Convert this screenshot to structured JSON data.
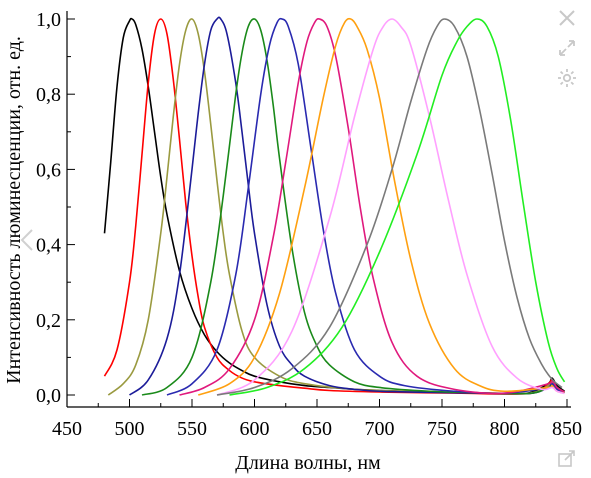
{
  "chart_data": {
    "type": "line",
    "title": "",
    "xlabel": "Длина волны, нм",
    "ylabel": "Интенсивность люминесценции, отн. ед.",
    "xlim": [
      450,
      850
    ],
    "ylim": [
      0,
      1.0
    ],
    "xticks": [
      "450",
      "500",
      "550",
      "600",
      "650",
      "700",
      "750",
      "800",
      "850"
    ],
    "yticks": [
      "0,0",
      "0,2",
      "0,4",
      "0,6",
      "0,8",
      "1,0"
    ],
    "grid": false,
    "legend": "none",
    "series": [
      {
        "color": "#000000",
        "x": [
          480,
          485,
          490,
          495,
          500,
          502,
          505,
          510,
          515,
          520,
          525,
          530,
          540,
          550,
          560,
          570,
          580,
          590,
          600,
          620,
          640,
          660,
          680,
          700,
          720,
          740,
          760,
          780,
          800,
          820,
          835,
          838,
          842,
          848
        ],
        "y": [
          0.43,
          0.62,
          0.82,
          0.95,
          0.995,
          1.0,
          0.985,
          0.92,
          0.82,
          0.7,
          0.58,
          0.48,
          0.33,
          0.23,
          0.16,
          0.115,
          0.085,
          0.065,
          0.05,
          0.035,
          0.025,
          0.02,
          0.015,
          0.012,
          0.01,
          0.008,
          0.006,
          0.005,
          0.004,
          0.006,
          0.03,
          0.045,
          0.025,
          0.01
        ]
      },
      {
        "color": "#ff0000",
        "x": [
          480,
          490,
          500,
          505,
          510,
          515,
          520,
          525,
          530,
          535,
          540,
          545,
          550,
          555,
          560,
          570,
          580,
          590,
          600,
          620,
          640,
          660,
          700,
          760,
          820,
          835,
          838,
          842,
          848
        ],
        "y": [
          0.05,
          0.12,
          0.3,
          0.45,
          0.64,
          0.83,
          0.96,
          1.0,
          0.96,
          0.84,
          0.68,
          0.51,
          0.37,
          0.26,
          0.18,
          0.1,
          0.065,
          0.045,
          0.035,
          0.025,
          0.018,
          0.012,
          0.008,
          0.005,
          0.004,
          0.03,
          0.04,
          0.02,
          0.008
        ]
      },
      {
        "color": "#9a9a40",
        "x": [
          483,
          495,
          505,
          515,
          525,
          530,
          535,
          540,
          545,
          550,
          555,
          560,
          565,
          570,
          575,
          580,
          590,
          600,
          620,
          640,
          680,
          720,
          780,
          820,
          835,
          838,
          842,
          848
        ],
        "y": [
          0.0,
          0.03,
          0.08,
          0.2,
          0.43,
          0.58,
          0.74,
          0.88,
          0.97,
          1.0,
          0.96,
          0.86,
          0.72,
          0.57,
          0.43,
          0.32,
          0.17,
          0.1,
          0.05,
          0.03,
          0.015,
          0.01,
          0.006,
          0.005,
          0.025,
          0.035,
          0.02,
          0.008
        ]
      },
      {
        "color": "#1c1c99",
        "x": [
          500,
          515,
          530,
          540,
          550,
          555,
          560,
          565,
          570,
          573,
          578,
          585,
          590,
          595,
          600,
          610,
          620,
          630,
          640,
          660,
          680,
          700,
          740,
          780,
          820,
          835,
          838,
          842,
          848
        ],
        "y": [
          0.0,
          0.04,
          0.15,
          0.32,
          0.6,
          0.75,
          0.88,
          0.97,
          1.0,
          1.0,
          0.96,
          0.83,
          0.7,
          0.56,
          0.43,
          0.24,
          0.13,
          0.08,
          0.05,
          0.025,
          0.015,
          0.01,
          0.007,
          0.005,
          0.004,
          0.02,
          0.03,
          0.015,
          0.006
        ]
      },
      {
        "color": "#1a8a1a",
        "x": [
          510,
          530,
          550,
          565,
          575,
          585,
          590,
          595,
          600,
          605,
          610,
          615,
          620,
          630,
          640,
          650,
          660,
          680,
          700,
          740,
          780,
          820,
          835,
          838,
          842,
          848
        ],
        "y": [
          0.0,
          0.02,
          0.1,
          0.3,
          0.53,
          0.8,
          0.91,
          0.98,
          1.0,
          0.97,
          0.89,
          0.77,
          0.63,
          0.39,
          0.22,
          0.13,
          0.08,
          0.035,
          0.02,
          0.01,
          0.006,
          0.004,
          0.02,
          0.025,
          0.012,
          0.005
        ]
      },
      {
        "color": "#2a2ab0",
        "x": [
          530,
          550,
          570,
          585,
          595,
          605,
          612,
          618,
          622,
          627,
          635,
          645,
          655,
          665,
          680,
          700,
          720,
          760,
          800,
          835,
          838,
          842,
          848
        ],
        "y": [
          0.0,
          0.03,
          0.12,
          0.32,
          0.55,
          0.8,
          0.93,
          0.99,
          1.0,
          0.98,
          0.88,
          0.66,
          0.44,
          0.27,
          0.12,
          0.05,
          0.025,
          0.01,
          0.005,
          0.02,
          0.03,
          0.015,
          0.005
        ]
      },
      {
        "color": "#e0197d",
        "x": [
          540,
          560,
          580,
          600,
          615,
          625,
          635,
          642,
          648,
          652,
          658,
          665,
          675,
          685,
          695,
          710,
          730,
          760,
          800,
          835,
          838,
          842,
          848
        ],
        "y": [
          0.0,
          0.02,
          0.07,
          0.2,
          0.42,
          0.62,
          0.83,
          0.94,
          0.99,
          1.0,
          0.98,
          0.9,
          0.71,
          0.49,
          0.31,
          0.14,
          0.05,
          0.015,
          0.005,
          0.03,
          0.04,
          0.02,
          0.008
        ]
      },
      {
        "color": "#ffa010",
        "x": [
          555,
          580,
          600,
          620,
          640,
          655,
          665,
          672,
          677,
          682,
          690,
          700,
          712,
          725,
          740,
          760,
          780,
          800,
          835,
          838,
          842,
          848
        ],
        "y": [
          0.0,
          0.03,
          0.1,
          0.27,
          0.55,
          0.79,
          0.93,
          0.99,
          1.0,
          0.98,
          0.92,
          0.79,
          0.57,
          0.36,
          0.19,
          0.07,
          0.025,
          0.01,
          0.02,
          0.025,
          0.01,
          0.005
        ]
      },
      {
        "color": "#ffa0ff",
        "x": [
          570,
          600,
          630,
          660,
          680,
          695,
          703,
          710,
          717,
          725,
          740,
          755,
          770,
          790,
          810,
          830,
          838,
          842,
          848
        ],
        "y": [
          0.0,
          0.04,
          0.17,
          0.47,
          0.74,
          0.92,
          0.98,
          1.0,
          0.98,
          0.93,
          0.74,
          0.52,
          0.32,
          0.13,
          0.045,
          0.015,
          0.02,
          0.01,
          0.004
        ]
      },
      {
        "color": "#7a7a7a",
        "x": [
          570,
          600,
          630,
          660,
          690,
          710,
          725,
          738,
          746,
          752,
          760,
          770,
          780,
          790,
          800,
          810,
          820,
          830,
          836,
          840,
          846
        ],
        "y": [
          0.0,
          0.02,
          0.07,
          0.18,
          0.4,
          0.6,
          0.78,
          0.92,
          0.98,
          1.0,
          0.98,
          0.9,
          0.76,
          0.59,
          0.41,
          0.26,
          0.15,
          0.08,
          0.05,
          0.035,
          0.02
        ]
      },
      {
        "color": "#22ee22",
        "x": [
          580,
          610,
          640,
          670,
          700,
          730,
          750,
          762,
          770,
          778,
          786,
          795,
          805,
          815,
          825,
          835,
          842,
          848
        ],
        "y": [
          0.0,
          0.02,
          0.07,
          0.18,
          0.38,
          0.64,
          0.85,
          0.94,
          0.98,
          1.0,
          0.98,
          0.9,
          0.73,
          0.51,
          0.3,
          0.14,
          0.07,
          0.035
        ]
      }
    ]
  },
  "toolbar": {
    "close_icon": "close-icon",
    "expand_icon": "expand-icon",
    "settings_icon": "gear-icon",
    "share_icon": "share-icon",
    "prev_icon": "chevron-left-icon"
  }
}
